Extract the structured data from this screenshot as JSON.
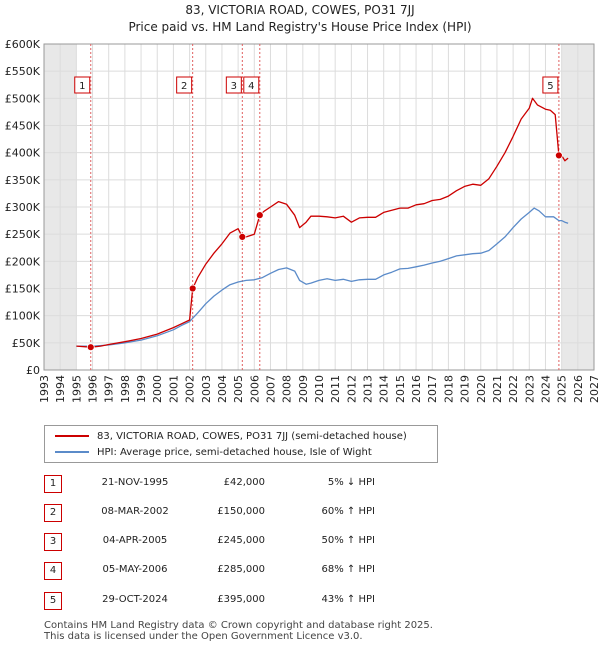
{
  "title_line1": "83, VICTORIA ROAD, COWES, PO31 7JJ",
  "title_line2": "Price paid vs. HM Land Registry's House Price Index (HPI)",
  "chart_data": {
    "type": "line",
    "title": "83, VICTORIA ROAD, COWES, PO31 7JJ",
    "subtitle": "Price paid vs. HM Land Registry's House Price Index (HPI)",
    "xlim": [
      1993,
      2027
    ],
    "ylim": [
      0,
      600000
    ],
    "x_ticks": [
      1993,
      1994,
      1995,
      1996,
      1997,
      1998,
      1999,
      2000,
      2001,
      2002,
      2003,
      2004,
      2005,
      2006,
      2007,
      2008,
      2009,
      2010,
      2011,
      2012,
      2013,
      2014,
      2015,
      2016,
      2017,
      2018,
      2019,
      2020,
      2021,
      2022,
      2023,
      2024,
      2025,
      2026,
      2027
    ],
    "y_ticks": [
      0,
      50000,
      100000,
      150000,
      200000,
      250000,
      300000,
      350000,
      400000,
      450000,
      500000,
      550000,
      600000
    ],
    "y_tick_labels": [
      "£0",
      "£50K",
      "£100K",
      "£150K",
      "£200K",
      "£250K",
      "£300K",
      "£350K",
      "£400K",
      "£450K",
      "£500K",
      "£550K",
      "£600K"
    ],
    "shaded_ranges": [
      [
        1993,
        1995.0
      ],
      [
        2025.0,
        2027
      ]
    ],
    "series": [
      {
        "name": "83, VICTORIA ROAD, COWES, PO31 7JJ (semi-detached house)",
        "color": "#cc0000",
        "x": [
          1995.0,
          1995.9,
          1996.5,
          1997.0,
          1998.0,
          1999.0,
          2000.0,
          2001.0,
          2001.5,
          2002.0,
          2002.19,
          2002.5,
          2003.0,
          2003.5,
          2004.0,
          2004.5,
          2005.0,
          2005.26,
          2005.5,
          2006.0,
          2006.34,
          2006.6,
          2007.0,
          2007.5,
          2008.0,
          2008.5,
          2008.8,
          2009.2,
          2009.5,
          2010.0,
          2010.5,
          2011.0,
          2011.5,
          2012.0,
          2012.5,
          2013.0,
          2013.5,
          2014.0,
          2014.5,
          2015.0,
          2015.5,
          2016.0,
          2016.5,
          2017.0,
          2017.5,
          2018.0,
          2018.5,
          2019.0,
          2019.5,
          2020.0,
          2020.5,
          2021.0,
          2021.5,
          2022.0,
          2022.5,
          2023.0,
          2023.2,
          2023.5,
          2024.0,
          2024.3,
          2024.6,
          2024.83,
          2025.0,
          2025.2,
          2025.4
        ],
        "values": [
          44000,
          42000,
          44000,
          47000,
          52000,
          58000,
          66000,
          78000,
          85000,
          92000,
          150000,
          170000,
          195000,
          215000,
          232000,
          252000,
          260000,
          245000,
          245000,
          250000,
          285000,
          292000,
          300000,
          310000,
          305000,
          285000,
          262000,
          272000,
          283000,
          283000,
          282000,
          280000,
          283000,
          272000,
          280000,
          281000,
          281000,
          290000,
          294000,
          298000,
          298000,
          304000,
          306000,
          312000,
          314000,
          320000,
          330000,
          338000,
          342000,
          340000,
          352000,
          375000,
          400000,
          430000,
          462000,
          482000,
          500000,
          488000,
          480000,
          478000,
          470000,
          395000,
          395000,
          385000,
          390000
        ]
      },
      {
        "name": "HPI: Average price, semi-detached house, Isle of Wight",
        "color": "#5b8bc9",
        "x": [
          1995.0,
          1996.0,
          1997.0,
          1998.0,
          1999.0,
          2000.0,
          2001.0,
          2001.5,
          2002.0,
          2002.5,
          2003.0,
          2003.5,
          2004.0,
          2004.5,
          2005.0,
          2005.5,
          2006.0,
          2006.5,
          2007.0,
          2007.5,
          2008.0,
          2008.5,
          2008.8,
          2009.2,
          2009.5,
          2010.0,
          2010.5,
          2011.0,
          2011.5,
          2012.0,
          2012.5,
          2013.0,
          2013.5,
          2014.0,
          2014.5,
          2015.0,
          2015.5,
          2016.0,
          2016.5,
          2017.0,
          2017.5,
          2018.0,
          2018.5,
          2019.0,
          2019.5,
          2020.0,
          2020.5,
          2021.0,
          2021.5,
          2022.0,
          2022.5,
          2023.0,
          2023.3,
          2023.6,
          2024.0,
          2024.5,
          2024.83,
          2025.0,
          2025.2,
          2025.4
        ],
        "values": [
          44000,
          44000,
          46000,
          50000,
          55000,
          63000,
          74000,
          82000,
          89000,
          105000,
          122000,
          136000,
          147000,
          157000,
          162000,
          165000,
          166000,
          170000,
          178000,
          185000,
          188000,
          182000,
          165000,
          158000,
          160000,
          165000,
          168000,
          165000,
          167000,
          163000,
          166000,
          167000,
          167000,
          175000,
          180000,
          186000,
          187000,
          190000,
          193000,
          197000,
          200000,
          205000,
          210000,
          212000,
          214000,
          215000,
          220000,
          232000,
          245000,
          262000,
          278000,
          290000,
          298000,
          293000,
          282000,
          282000,
          275000,
          275000,
          272000,
          270000
        ]
      }
    ],
    "markers": [
      {
        "label": "1",
        "x": 1995.89,
        "y": 42000
      },
      {
        "label": "2",
        "x": 2002.19,
        "y": 150000
      },
      {
        "label": "3",
        "x": 2005.26,
        "y": 245000
      },
      {
        "label": "4",
        "x": 2006.34,
        "y": 285000
      },
      {
        "label": "5",
        "x": 2024.83,
        "y": 395000
      }
    ]
  },
  "legend": {
    "red_label": "83, VICTORIA ROAD, COWES, PO31 7JJ (semi-detached house)",
    "blue_label": "HPI: Average price, semi-detached house, Isle of Wight"
  },
  "sales": [
    {
      "num": "1",
      "date": "21-NOV-1995",
      "price": "£42,000",
      "hpi": "5% ↓ HPI"
    },
    {
      "num": "2",
      "date": "08-MAR-2002",
      "price": "£150,000",
      "hpi": "60% ↑ HPI"
    },
    {
      "num": "3",
      "date": "04-APR-2005",
      "price": "£245,000",
      "hpi": "50% ↑ HPI"
    },
    {
      "num": "4",
      "date": "05-MAY-2006",
      "price": "£285,000",
      "hpi": "68% ↑ HPI"
    },
    {
      "num": "5",
      "date": "29-OCT-2024",
      "price": "£395,000",
      "hpi": "43% ↑ HPI"
    }
  ],
  "footer": {
    "line1": "Contains HM Land Registry data © Crown copyright and database right 2025.",
    "line2": "This data is licensed under the Open Government Licence v3.0."
  }
}
